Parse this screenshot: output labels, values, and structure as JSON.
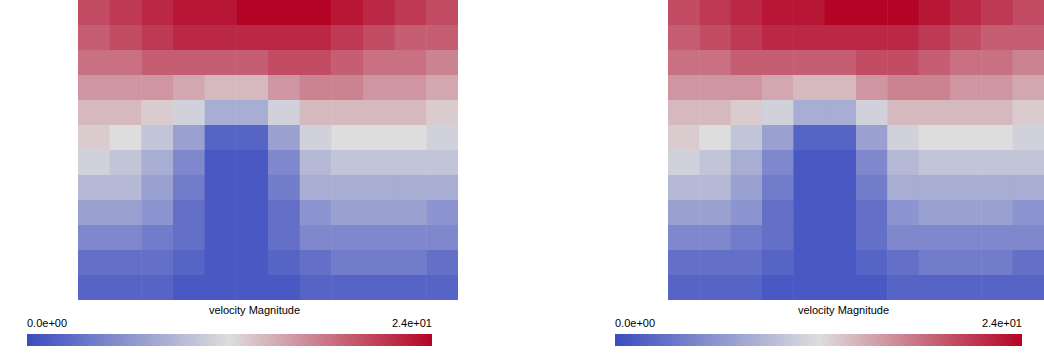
{
  "chart_data": [
    {
      "type": "heatmap",
      "tick_labels": false,
      "values": [
        [
          20,
          21,
          22,
          23,
          23,
          24,
          24,
          24,
          23,
          22,
          21,
          20
        ],
        [
          19,
          20,
          21,
          22,
          22,
          22,
          22,
          22,
          21,
          20,
          19,
          19
        ],
        [
          18,
          18,
          19,
          19,
          19,
          19,
          20,
          20,
          19,
          18,
          18,
          17
        ],
        [
          16,
          16,
          16,
          15,
          14,
          14,
          16,
          17,
          17,
          16,
          16,
          15
        ],
        [
          14,
          14,
          13,
          11,
          8,
          8,
          11,
          14,
          14,
          14,
          14,
          13
        ],
        [
          13,
          12,
          10,
          7,
          2,
          2,
          7,
          11,
          12,
          12,
          12,
          11
        ],
        [
          11,
          10,
          8,
          5,
          1,
          1,
          5,
          9,
          10,
          10,
          10,
          10
        ],
        [
          9,
          9,
          7,
          4,
          1,
          1,
          4,
          8,
          8,
          8,
          8,
          8
        ],
        [
          7,
          7,
          6,
          3,
          1,
          1,
          3,
          6,
          7,
          7,
          7,
          6
        ],
        [
          5,
          5,
          4,
          3,
          1,
          1,
          3,
          5,
          5,
          5,
          5,
          5
        ],
        [
          3,
          3,
          3,
          2,
          1,
          1,
          2,
          3,
          4,
          4,
          4,
          3
        ],
        [
          2,
          2,
          2,
          1,
          1,
          1,
          1,
          2,
          2,
          2,
          2,
          2
        ]
      ],
      "colorbar": {
        "label": "velocity Magnitude",
        "lim": [
          0,
          24
        ],
        "ticks": [
          {
            "value": 0,
            "label": "0.0e+00"
          },
          {
            "value": 24,
            "label": "2.4e+01"
          }
        ]
      }
    },
    {
      "type": "heatmap",
      "tick_labels": false,
      "values": [
        [
          20,
          21,
          22,
          23,
          23,
          24,
          24,
          24,
          23,
          22,
          21,
          20
        ],
        [
          19,
          20,
          21,
          22,
          22,
          22,
          22,
          22,
          21,
          20,
          19,
          19
        ],
        [
          18,
          18,
          19,
          19,
          19,
          19,
          20,
          20,
          19,
          18,
          18,
          17
        ],
        [
          16,
          16,
          16,
          15,
          14,
          14,
          16,
          17,
          17,
          16,
          16,
          15
        ],
        [
          14,
          14,
          13,
          11,
          8,
          8,
          11,
          14,
          14,
          14,
          14,
          13
        ],
        [
          13,
          12,
          10,
          7,
          2,
          2,
          7,
          11,
          12,
          12,
          12,
          11
        ],
        [
          11,
          10,
          8,
          5,
          1,
          1,
          5,
          9,
          10,
          10,
          10,
          10
        ],
        [
          9,
          9,
          7,
          4,
          1,
          1,
          4,
          8,
          8,
          8,
          8,
          8
        ],
        [
          7,
          7,
          6,
          3,
          1,
          1,
          3,
          6,
          7,
          7,
          7,
          6
        ],
        [
          5,
          5,
          4,
          3,
          1,
          1,
          3,
          5,
          5,
          5,
          5,
          5
        ],
        [
          3,
          3,
          3,
          2,
          1,
          1,
          2,
          3,
          4,
          4,
          4,
          3
        ],
        [
          2,
          2,
          2,
          1,
          1,
          1,
          1,
          2,
          2,
          2,
          2,
          2
        ]
      ],
      "colorbar": {
        "label": "velocity Magnitude",
        "lim": [
          0,
          24
        ],
        "ticks": [
          {
            "value": 0,
            "label": "0.0e+00"
          },
          {
            "value": 24,
            "label": "2.4e+01"
          }
        ]
      }
    }
  ]
}
